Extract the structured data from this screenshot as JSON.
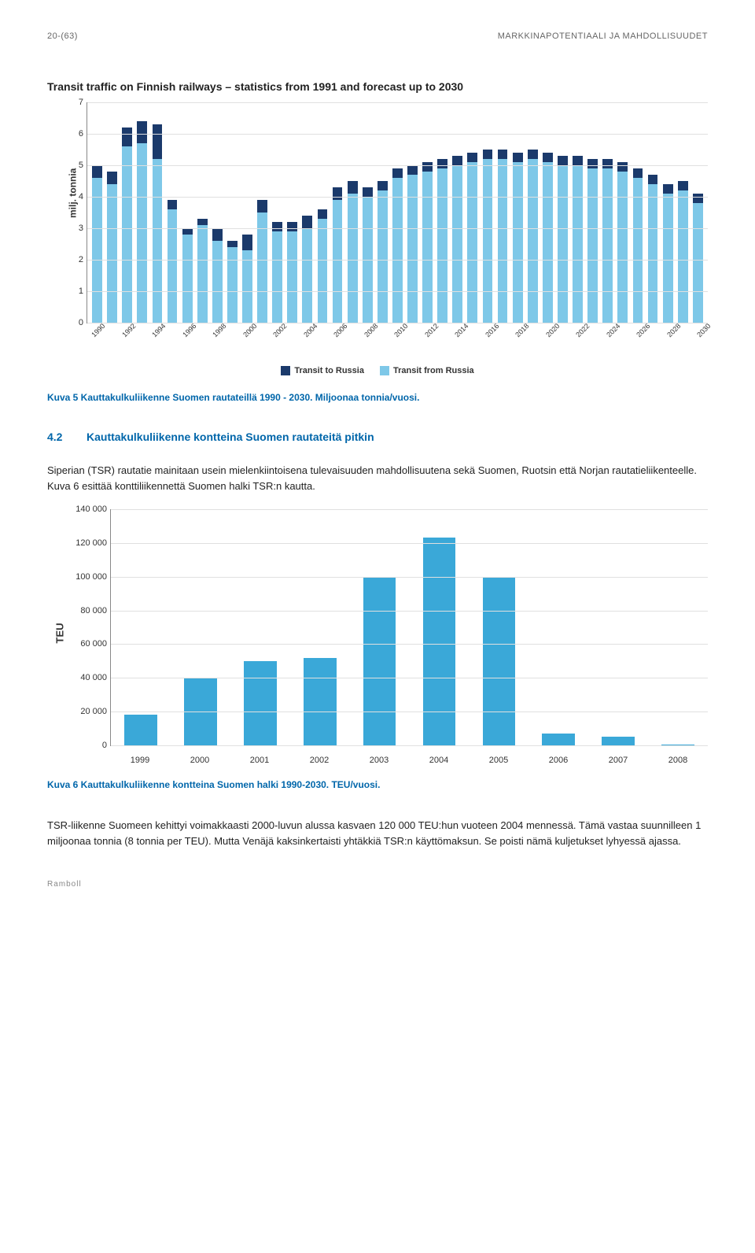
{
  "header": {
    "page_ref": "20-(63)",
    "doc_title": "MARKKINAPOTENTIAALI JA MAHDOLLISUUDET"
  },
  "chart1": {
    "type": "stacked-bar",
    "title": "Transit traffic on Finnish railways – statistics from 1991 and forecast up to 2030",
    "y_label": "milj. tonnia",
    "ylim": [
      0,
      7
    ],
    "ytick_step": 1,
    "background_color": "#ffffff",
    "grid_color": "#e0e0e0",
    "years": [
      "1990",
      "1992",
      "1994",
      "1996",
      "1998",
      "2000",
      "2002",
      "2004",
      "2006",
      "2008",
      "2010",
      "2012",
      "2014",
      "2016",
      "2018",
      "2020",
      "2022",
      "2024",
      "2026",
      "2028",
      "2030"
    ],
    "all_years": [
      "1990",
      "1991",
      "1992",
      "1993",
      "1994",
      "1995",
      "1996",
      "1997",
      "1998",
      "1999",
      "2000",
      "2001",
      "2002",
      "2003",
      "2004",
      "2005",
      "2006",
      "2007",
      "2008",
      "2009",
      "2010",
      "2011",
      "2012",
      "2013",
      "2014",
      "2015",
      "2016",
      "2017",
      "2018",
      "2019",
      "2020",
      "2021",
      "2022",
      "2023",
      "2024",
      "2025",
      "2026",
      "2027",
      "2028",
      "2029",
      "2030"
    ],
    "series": {
      "transit_to_russia": {
        "label": "Transit to Russia",
        "color": "#1b3a6b",
        "values": [
          0.4,
          0.4,
          0.6,
          0.7,
          1.1,
          0.3,
          0.2,
          0.2,
          0.4,
          0.2,
          0.5,
          0.4,
          0.3,
          0.3,
          0.4,
          0.3,
          0.4,
          0.4,
          0.3,
          0.3,
          0.3,
          0.3,
          0.3,
          0.3,
          0.3,
          0.3,
          0.3,
          0.3,
          0.3,
          0.3,
          0.3,
          0.3,
          0.3,
          0.3,
          0.3,
          0.3,
          0.3,
          0.3,
          0.3,
          0.3,
          0.3
        ]
      },
      "transit_from_russia": {
        "label": "Transit from Russia",
        "color": "#7ec8e8",
        "values": [
          4.6,
          4.4,
          5.6,
          5.7,
          5.2,
          3.6,
          2.8,
          3.1,
          2.6,
          2.4,
          2.3,
          3.5,
          2.9,
          2.9,
          3.0,
          3.3,
          3.9,
          4.1,
          4.0,
          4.2,
          4.6,
          4.7,
          4.8,
          4.9,
          5.0,
          5.1,
          5.2,
          5.2,
          5.1,
          5.2,
          5.1,
          5.0,
          5.0,
          4.9,
          4.9,
          4.8,
          4.6,
          4.4,
          4.1,
          4.2,
          3.8
        ]
      }
    },
    "legend_items": [
      {
        "label": "Transit to Russia",
        "color": "#1b3a6b"
      },
      {
        "label": "Transit from Russia",
        "color": "#7ec8e8"
      }
    ],
    "caption": "Kuva 5 Kauttakulkuliikenne Suomen rautateillä 1990 - 2030. Miljoonaa tonnia/vuosi."
  },
  "section": {
    "number": "4.2",
    "title": "Kauttakulkuliikenne kontteina Suomen rautateitä pitkin",
    "paragraph1": "Siperian (TSR) rautatie mainitaan usein mielenkiintoisena tulevaisuuden mahdollisuutena sekä Suomen, Ruotsin että Norjan rautatieliikenteelle. Kuva 6 esittää konttiliikennettä Suomen halki TSR:n kautta."
  },
  "chart2": {
    "type": "bar",
    "y_label": "TEU",
    "ylim": [
      0,
      140000
    ],
    "ytick_step": 20000,
    "yticks": [
      "0",
      "20 000",
      "40 000",
      "60 000",
      "80 000",
      "100 000",
      "120 000",
      "140 000"
    ],
    "background_color": "#ffffff",
    "grid_color": "#e0e0e0",
    "bar_color": "#3aa8d8",
    "categories": [
      "1999",
      "2000",
      "2001",
      "2002",
      "2003",
      "2004",
      "2005",
      "2006",
      "2007",
      "2008"
    ],
    "values": [
      18000,
      40000,
      50000,
      52000,
      100000,
      123000,
      100000,
      7000,
      5000,
      500
    ],
    "caption": "Kuva 6 Kauttakulkuliikenne kontteina Suomen halki 1990-2030. TEU/vuosi."
  },
  "paragraph2": "TSR-liikenne Suomeen kehittyi voimakkaasti 2000-luvun alussa kasvaen 120 000 TEU:hun vuoteen 2004 mennessä. Tämä vastaa suunnilleen 1 miljoonaa tonnia (8 tonnia per TEU). Mutta Venäjä kaksinkertaisti yhtäkkiä TSR:n käyttömaksun. Se poisti nämä kuljetukset lyhyessä ajassa.",
  "footer": "Ramboll"
}
